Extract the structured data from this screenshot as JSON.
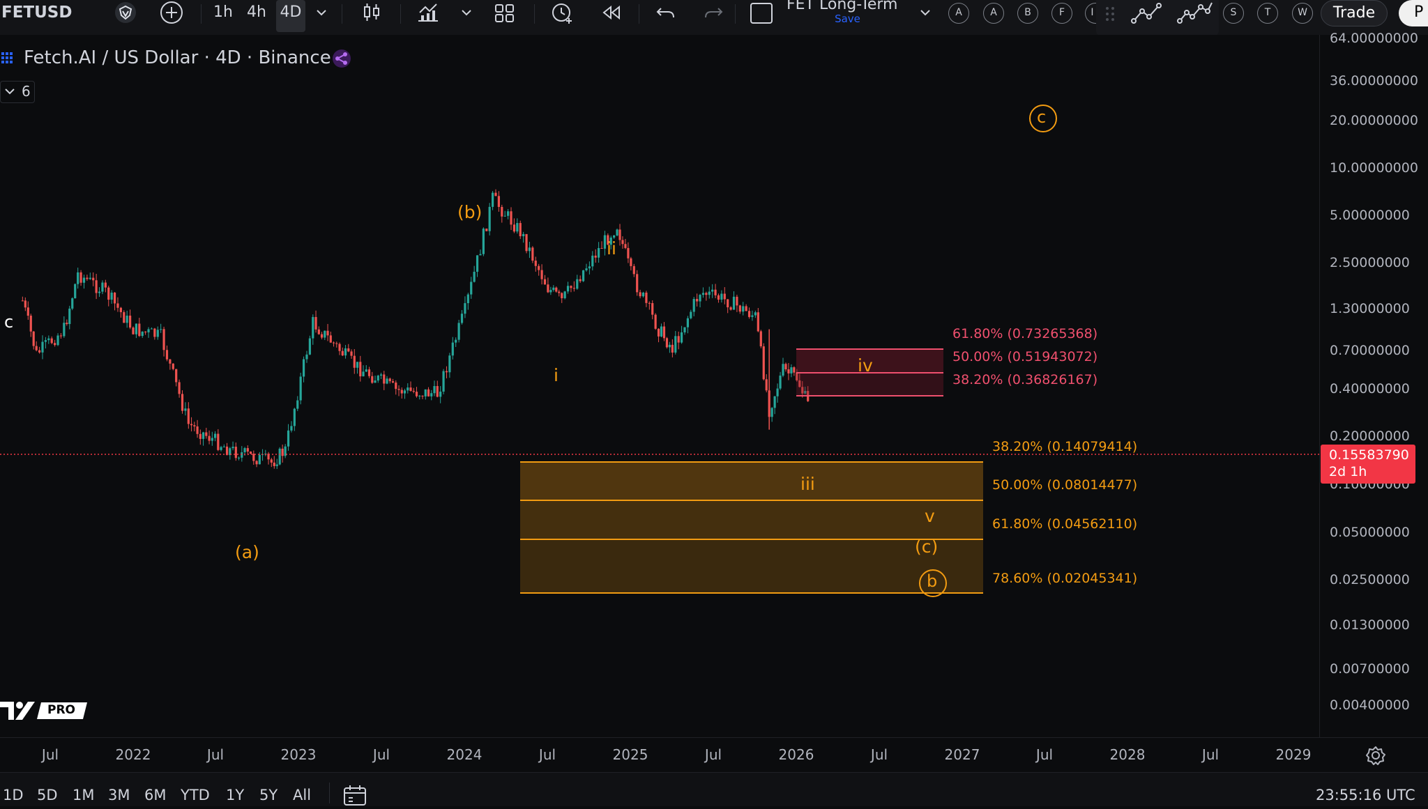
{
  "toolbar": {
    "symbol": "FETUSD",
    "intervals": [
      "1h",
      "4h",
      "4D"
    ],
    "active_interval": "4D",
    "layout_name": "FET Long-Term",
    "save_label": "Save",
    "alert_letters": [
      "A",
      "A",
      "B",
      "F",
      "I"
    ],
    "right_letters": [
      "S",
      "T",
      "W"
    ],
    "trade_label": "Trade",
    "cut_label": "P"
  },
  "legend": {
    "title": "Fetch.AI / US Dollar · 4D · Binance",
    "indicator_count": "6"
  },
  "waves": {
    "c_top_left": "c",
    "a": "(a)",
    "b": "(b)",
    "i": "i",
    "ii": "ii",
    "iii": "iii",
    "iv": "iv",
    "v": "v",
    "c_paren": "(c)",
    "circ_b": "b",
    "circ_c": "c"
  },
  "fib_upper": [
    {
      "pct": "61.80% (0.73265368)",
      "value": 0.73265368
    },
    {
      "pct": "50.00% (0.51943072)",
      "value": 0.51943072
    },
    {
      "pct": "38.20% (0.36826167)",
      "value": 0.36826167
    }
  ],
  "fib_lower": [
    {
      "pct": "38.20% (0.14079414)",
      "value": 0.14079414
    },
    {
      "pct": "50.00% (0.08014477)",
      "value": 0.08014477
    },
    {
      "pct": "61.80% (0.04562110)",
      "value": 0.0456211
    },
    {
      "pct": "78.60% (0.02045341)",
      "value": 0.02045341
    }
  ],
  "price_axis": [
    "64.00000000",
    "36.00000000",
    "20.00000000",
    "10.00000000",
    "5.00000000",
    "2.50000000",
    "1.30000000",
    "0.70000000",
    "0.40000000",
    "0.20000000",
    "0.10000000",
    "0.05000000",
    "0.02500000",
    "0.01300000",
    "0.00700000",
    "0.00400000"
  ],
  "current_price": {
    "value": "0.15583790",
    "countdown": "2d 1h",
    "color": "#f23645"
  },
  "time_axis": [
    "Jul",
    "2022",
    "Jul",
    "2023",
    "Jul",
    "2024",
    "Jul",
    "2025",
    "Jul",
    "2026",
    "Jul",
    "2027",
    "Jul",
    "2028",
    "Jul",
    "2029"
  ],
  "ranges": [
    "1D",
    "5D",
    "1M",
    "3M",
    "6M",
    "YTD",
    "1Y",
    "5Y",
    "All"
  ],
  "clock": "23:55:16 UTC",
  "logo_text": "PRO",
  "chart_data": {
    "type": "candlestick",
    "scale": "log",
    "symbol": "FETUSD",
    "timeframe": "4D",
    "ylim": [
      0.004,
      64
    ],
    "x_range": [
      "2021-05",
      "2029-03"
    ],
    "current_price": 0.1558379,
    "approx_path": [
      {
        "x": "2021-05",
        "y": 0.75
      },
      {
        "x": "2021-06",
        "y": 0.35
      },
      {
        "x": "2021-08",
        "y": 0.5
      },
      {
        "x": "2021-09",
        "y": 1.1
      },
      {
        "x": "2021-11",
        "y": 0.85
      },
      {
        "x": "2022-01",
        "y": 0.5
      },
      {
        "x": "2022-03",
        "y": 0.45
      },
      {
        "x": "2022-05",
        "y": 0.13
      },
      {
        "x": "2022-08",
        "y": 0.09
      },
      {
        "x": "2022-11",
        "y": 0.075
      },
      {
        "x": "2022-12",
        "y": 0.09
      },
      {
        "x": "2023-02",
        "y": 0.55
      },
      {
        "x": "2023-05",
        "y": 0.3
      },
      {
        "x": "2023-08",
        "y": 0.21
      },
      {
        "x": "2023-11",
        "y": 0.2
      },
      {
        "x": "2024-01",
        "y": 0.65
      },
      {
        "x": "2024-03",
        "y": 3.2
      },
      {
        "x": "2024-05",
        "y": 2.0
      },
      {
        "x": "2024-07",
        "y": 0.9
      },
      {
        "x": "2024-08",
        "y": 0.75
      },
      {
        "x": "2024-10",
        "y": 1.3
      },
      {
        "x": "2024-12",
        "y": 2.2
      },
      {
        "x": "2025-01",
        "y": 1.1
      },
      {
        "x": "2025-03",
        "y": 0.5
      },
      {
        "x": "2025-04",
        "y": 0.38
      },
      {
        "x": "2025-06",
        "y": 0.85
      },
      {
        "x": "2025-08",
        "y": 0.75
      },
      {
        "x": "2025-10",
        "y": 0.6
      },
      {
        "x": "2025-11",
        "y": 0.16
      },
      {
        "x": "2025-12",
        "y": 0.28
      },
      {
        "x": "2026-01",
        "y": 0.25
      },
      {
        "x": "2026-02",
        "y": 0.155
      }
    ]
  }
}
